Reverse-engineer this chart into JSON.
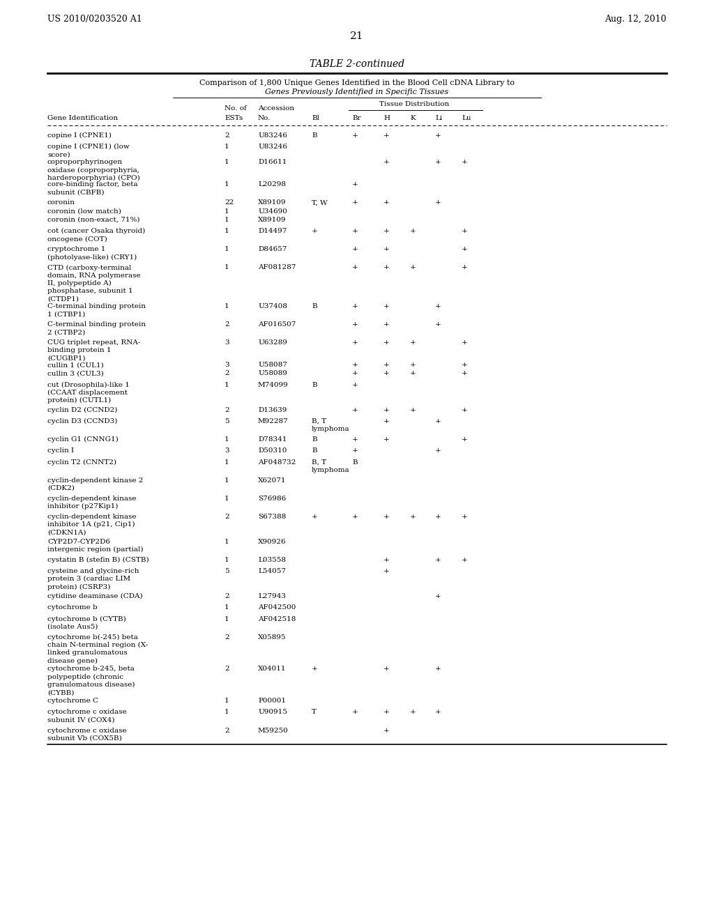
{
  "page_header_left": "US 2010/0203520 A1",
  "page_header_right": "Aug. 12, 2010",
  "page_number": "21",
  "table_title": "TABLE 2-continued",
  "subtitle1": "Comparison of 1,800 Unique Genes Identified in the Blood Cell cDNA Library to",
  "subtitle2": "Genes Previously Identified in Specific Tissues",
  "rows": [
    [
      "copine I (CPNE1)",
      "2",
      "U83246",
      "B",
      "+",
      "+",
      "",
      "+",
      ""
    ],
    [
      "copine I (CPNE1) (low\nscore)",
      "1",
      "U83246",
      "",
      "",
      "",
      "",
      "",
      ""
    ],
    [
      "coproporphyrinogen\noxidase (coproporphyria,\nharderoporphyria) (CPO)",
      "1",
      "D16611",
      "",
      "",
      "+",
      "",
      "+",
      "+"
    ],
    [
      "core-binding factor, beta\nsubunit (CBFB)",
      "1",
      "L20298",
      "",
      "+",
      "",
      "",
      "",
      ""
    ],
    [
      "coronin",
      "22",
      "X89109",
      "T, W",
      "+",
      "+",
      "",
      "+",
      ""
    ],
    [
      "coronin (low match)",
      "1",
      "U34690",
      "",
      "",
      "",
      "",
      "",
      ""
    ],
    [
      "coronin (non-exact, 71%)",
      "1",
      "X89109",
      "",
      "",
      "",
      "",
      "",
      ""
    ],
    [
      "cot (cancer Osaka thyroid)\noncogene (COT)",
      "1",
      "D14497",
      "+",
      "+",
      "+",
      "+",
      "",
      "+"
    ],
    [
      "cryptochrome 1\n(photolyase-like) (CRY1)",
      "1",
      "D84657",
      "",
      "+",
      "+",
      "",
      "",
      "+"
    ],
    [
      "CTD (carboxy-terminal\ndomain, RNA polymerase\nII, polypeptide A)\nphosphatase, subunit 1\n(CTDP1)",
      "1",
      "AF081287",
      "",
      "+",
      "+",
      "+",
      "",
      "+"
    ],
    [
      "C-terminal binding protein\n1 (CTBP1)",
      "1",
      "U37408",
      "B",
      "+",
      "+",
      "",
      "+",
      ""
    ],
    [
      "C-terminal binding protein\n2 (CTBP2)",
      "2",
      "AF016507",
      "",
      "+",
      "+",
      "",
      "+",
      ""
    ],
    [
      "CUG triplet repeat, RNA-\nbinding protein 1\n(CUGBP1)",
      "3",
      "U63289",
      "",
      "+",
      "+",
      "+",
      "",
      "+"
    ],
    [
      "cullin 1 (CUL1)",
      "3",
      "U58087",
      "",
      "+",
      "+",
      "+",
      "",
      "+"
    ],
    [
      "cullin 3 (CUL3)",
      "2",
      "U58089",
      "",
      "+",
      "+",
      "+",
      "",
      "+"
    ],
    [
      "cut (Drosophila)-like 1\n(CCAAT displacement\nprotein) (CUTL1)",
      "1",
      "M74099",
      "B",
      "+",
      "",
      "",
      "",
      ""
    ],
    [
      "cyclin D2 (CCND2)",
      "2",
      "D13639",
      "",
      "+",
      "+",
      "+",
      "",
      "+"
    ],
    [
      "cyclin D3 (CCND3)",
      "5",
      "M92287",
      "B, T\nlymphoma",
      "",
      "+",
      "",
      "+",
      ""
    ],
    [
      "cyclin G1 (CNNG1)",
      "1",
      "D78341",
      "B",
      "+",
      "+",
      "",
      "",
      "+"
    ],
    [
      "cyclin I",
      "3",
      "D50310",
      "B",
      "+",
      "",
      "",
      "+",
      ""
    ],
    [
      "cyclin T2 (CNNT2)",
      "1",
      "AF048732",
      "B, T\nlymphoma",
      "B",
      "",
      "",
      "",
      ""
    ],
    [
      "cyclin-dependent kinase 2\n(CDK2)",
      "1",
      "X62071",
      "",
      "",
      "",
      "",
      "",
      ""
    ],
    [
      "cyclin-dependent kinase\ninhibitor (p27Kip1)",
      "1",
      "S76986",
      "",
      "",
      "",
      "",
      "",
      ""
    ],
    [
      "cyclin-dependent kinase\ninhibitor 1A (p21, Cip1)\n(CDKN1A)",
      "2",
      "S67388",
      "+",
      "+",
      "+",
      "+",
      "+",
      "+"
    ],
    [
      "CYP2D7-CYP2D6\nintergenic region (partial)",
      "1",
      "X90926",
      "",
      "",
      "",
      "",
      "",
      ""
    ],
    [
      "cystatin B (stefin B) (CSTB)",
      "1",
      "L03558",
      "",
      "",
      "+",
      "",
      "+",
      "+"
    ],
    [
      "cysteine and glycine-rich\nprotein 3 (cardiac LIM\nprotein) (CSRP3)",
      "5",
      "L54057",
      "",
      "",
      "+",
      "",
      "",
      ""
    ],
    [
      "cytidine deaminase (CDA)",
      "2",
      "L27943",
      "",
      "",
      "",
      "",
      "+",
      ""
    ],
    [
      "cytochrome b",
      "1",
      "AF042500",
      "",
      "",
      "",
      "",
      "",
      ""
    ],
    [
      "cytochrome b (CYTB)\n(isolate Aus5)",
      "1",
      "AF042518",
      "",
      "",
      "",
      "",
      "",
      ""
    ],
    [
      "cytochrome b(-245) beta\nchain N-terminal region (X-\nlinked granulomatous\ndisease gene)",
      "2",
      "X05895",
      "",
      "",
      "",
      "",
      "",
      ""
    ],
    [
      "cytochrome b-245, beta\npolypeptide (chronic\ngranulomatous disease)\n(CYBB)",
      "2",
      "X04011",
      "+",
      "",
      "+",
      "",
      "+",
      ""
    ],
    [
      "cytochrome C",
      "1",
      "P00001",
      "",
      "",
      "",
      "",
      "",
      ""
    ],
    [
      "cytochrome c oxidase\nsubunit IV (COX4)",
      "1",
      "U90915",
      "T",
      "+",
      "+",
      "+",
      "+",
      ""
    ],
    [
      "cytochrome c oxidase\nsubunit Vb (COX5B)",
      "2",
      "M59250",
      "",
      "",
      "+",
      "",
      "",
      ""
    ]
  ],
  "background_color": "#ffffff",
  "text_color": "#000000",
  "font_size_body": 7.5,
  "font_size_title": 10,
  "font_size_page": 9
}
